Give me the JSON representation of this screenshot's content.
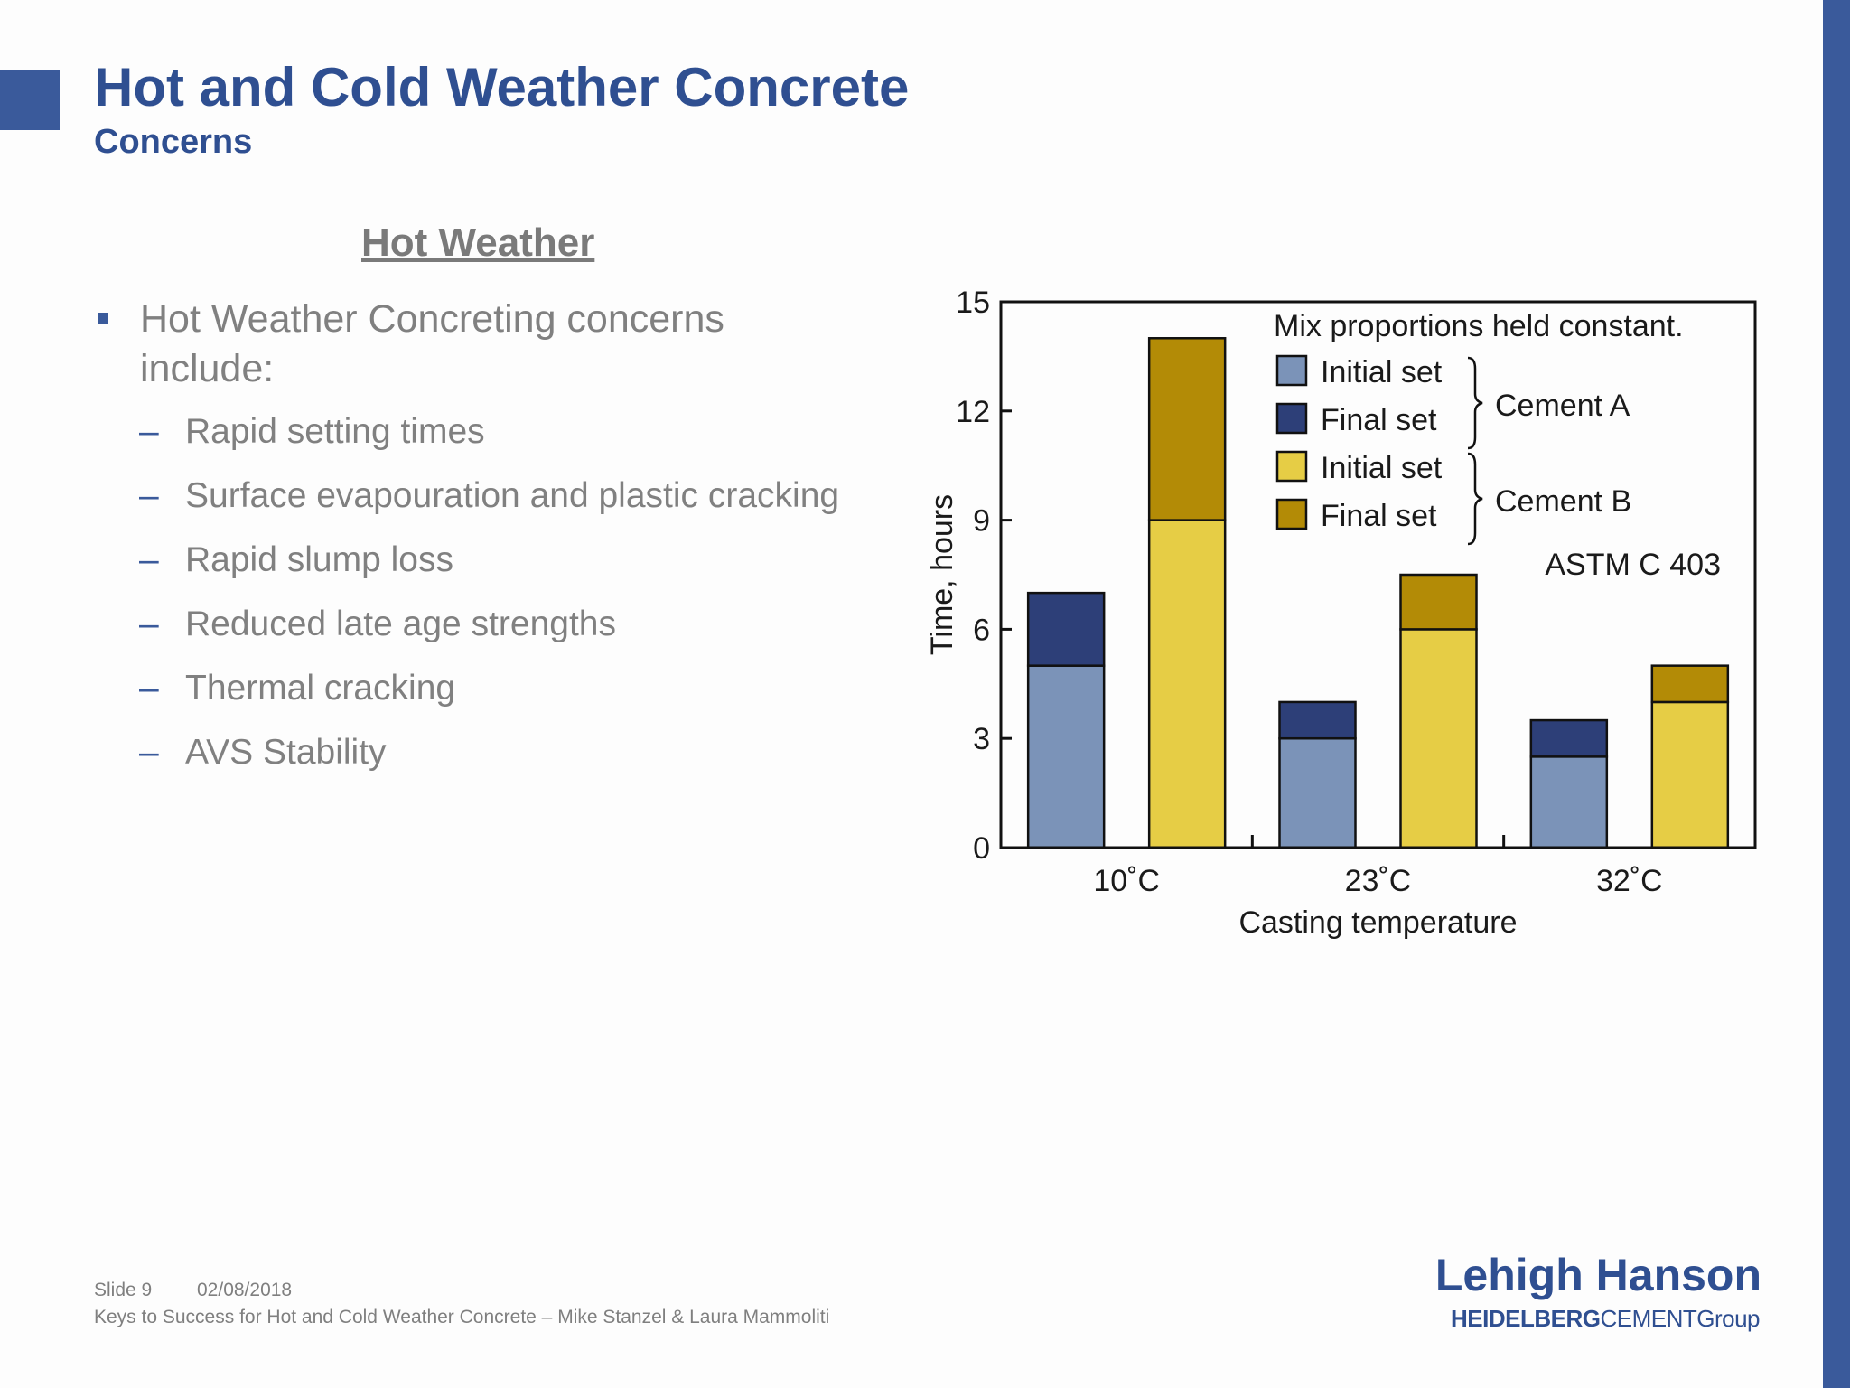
{
  "slide": {
    "title": "Hot and Cold Weather Concrete",
    "subtitle": "Concerns",
    "section_heading": "Hot Weather",
    "main_bullet": "Hot Weather Concreting concerns include:",
    "sub_bullets": [
      "Rapid setting times",
      "Surface evapouration and plastic cracking",
      "Rapid slump loss",
      "Reduced late age strengths",
      "Thermal cracking",
      "AVS Stability"
    ],
    "dash": "–"
  },
  "chart_data": {
    "type": "bar",
    "stacked": true,
    "categories": [
      "10˚C",
      "23˚C",
      "32˚C"
    ],
    "xlabel": "Casting temperature",
    "ylabel": "Time, hours",
    "ylim": [
      0,
      15
    ],
    "yticks": [
      0,
      3,
      6,
      9,
      12,
      15
    ],
    "grid": false,
    "legend_placement": "top-right",
    "note": "Mix proportions held constant.",
    "standard": "ASTM C 403",
    "groups": [
      {
        "name": "Cement A",
        "initial_set": [
          5,
          3,
          2.5
        ],
        "final_set": [
          7,
          4,
          3.5
        ],
        "colors": {
          "initial": "#7b93b8",
          "final": "#2d3f78"
        }
      },
      {
        "name": "Cement B",
        "initial_set": [
          9,
          6,
          4
        ],
        "final_set": [
          14,
          7.5,
          5
        ],
        "colors": {
          "initial": "#e6cd45",
          "final": "#b38b06"
        }
      }
    ],
    "legend": [
      {
        "label": "Initial set",
        "group": "Cement A",
        "color": "#7b93b8"
      },
      {
        "label": "Final set",
        "group": "Cement A",
        "color": "#2d3f78"
      },
      {
        "label": "Initial set",
        "group": "Cement B",
        "color": "#e6cd45"
      },
      {
        "label": "Final set",
        "group": "Cement B",
        "color": "#b38b06"
      }
    ]
  },
  "footer": {
    "slide_number": "Slide 9",
    "date": "02/08/2018",
    "caption": "Keys to Success for Hot and Cold Weather Concrete – Mike Stanzel & Laura Mammoliti"
  },
  "logo": {
    "main": "Lehigh Hanson",
    "sub_bold": "HEIDELBERG",
    "sub_rest": "CEMENTGroup"
  },
  "colors": {
    "brand_blue": "#3a5a9b",
    "title_blue": "#2f4f91",
    "body_gray": "#808080"
  }
}
